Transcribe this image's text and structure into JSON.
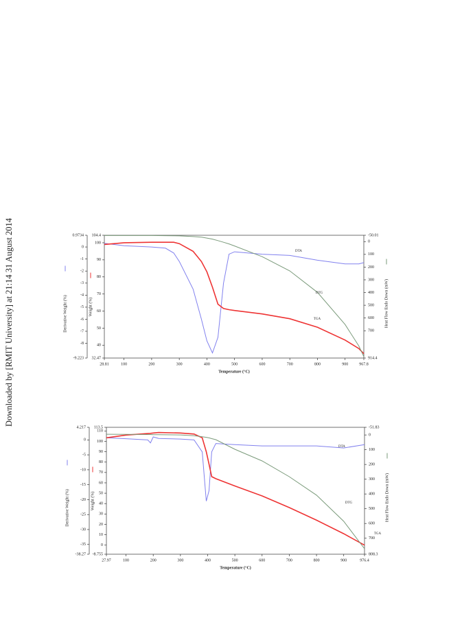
{
  "watermark": "Downloaded by [RMIT University] at 21:14 31 August 2014",
  "chart_data": [
    {
      "type": "line",
      "x_label": "Temperature (°C)",
      "y_label": "Derivative Weight (%)",
      "y2_label": "Weight (%)",
      "y3_label": "Heat Flow Endo Down (mW)",
      "xlim": [
        28.81,
        967.8
      ],
      "xticks": [
        28.81,
        100,
        200,
        300,
        400,
        500,
        600,
        700,
        800,
        900,
        967.8
      ],
      "ylim": [
        -9.223,
        0.9734
      ],
      "yticks": [
        0.9734,
        0,
        -1,
        -2,
        -3,
        -4,
        -5,
        -6,
        -7,
        -8,
        -9.223
      ],
      "y2lim": [
        32.47,
        104.4
      ],
      "y2ticks": [
        104.4,
        100,
        90,
        80,
        70,
        60,
        50,
        40,
        32.47
      ],
      "y3lim": [
        914.4,
        -50.01
      ],
      "y3ticks": [
        -50.01,
        0,
        100,
        200,
        300,
        400,
        500,
        600,
        700,
        914.4
      ],
      "x": [
        28.81,
        100,
        200,
        250,
        280,
        300,
        350,
        380,
        400,
        420,
        440,
        460,
        480,
        500,
        600,
        700,
        800,
        900,
        950,
        967.8
      ],
      "series": [
        {
          "name": "DTA",
          "color": "#8080ee",
          "axis": "y",
          "values": [
            0.3,
            0.1,
            0,
            -0.1,
            -0.5,
            -1.2,
            -3.5,
            -6,
            -7.8,
            -8.8,
            -7.5,
            -3,
            -0.6,
            -0.4,
            -0.6,
            -0.7,
            -1.1,
            -1.4,
            -1.4,
            -1.3
          ]
        },
        {
          "name": "TGA",
          "color": "#ee3333",
          "axis": "y2",
          "values": [
            99,
            100,
            100.3,
            100.3,
            100.3,
            99.5,
            95,
            89,
            83,
            74,
            64,
            61.5,
            60.8,
            60.3,
            58.3,
            55.5,
            50.5,
            43,
            38,
            35
          ]
        },
        {
          "name": "DTG",
          "color": "#7a9a7a",
          "axis": "y3",
          "values": [
            -48,
            -48,
            -48,
            -47,
            -46,
            -45,
            -40,
            -35,
            -28,
            -20,
            -8,
            5,
            18,
            34,
            118,
            230,
            399,
            651,
            820,
            903
          ]
        }
      ]
    },
    {
      "type": "line",
      "x_label": "Temperature (°C)",
      "y_label": "Derivative Weight (%)",
      "y2_label": "Weight (%)",
      "y3_label": "Heat Flow Endo Down (mW)",
      "xlim": [
        27.97,
        976.4
      ],
      "xticks": [
        27.97,
        100,
        200,
        300,
        400,
        500,
        600,
        700,
        800,
        900,
        976.4
      ],
      "ylim": [
        -38.27,
        4.217
      ],
      "yticks": [
        4.217,
        0,
        -5,
        -10,
        -15,
        -20,
        -25,
        -30,
        -35,
        -38.27
      ],
      "y2lim": [
        -8.755,
        113.5
      ],
      "y2ticks": [
        113.5,
        110,
        100,
        90,
        80,
        70,
        60,
        50,
        40,
        30,
        20,
        10,
        0,
        -8.755
      ],
      "y3lim": [
        808.3,
        -51.83
      ],
      "y3ticks": [
        -51.83,
        0,
        100,
        200,
        300,
        400,
        500,
        600,
        700,
        808.3
      ],
      "x": [
        27.97,
        100,
        180,
        190,
        200,
        220,
        300,
        350,
        380,
        395,
        405,
        415,
        430,
        500,
        600,
        700,
        800,
        900,
        976.4
      ],
      "series": [
        {
          "name": "DTA",
          "color": "#8080ee",
          "axis": "y",
          "values": [
            0.7,
            0.4,
            0,
            -1,
            1,
            0.5,
            0.3,
            0,
            -4,
            -20.5,
            -17,
            -4,
            -1.2,
            -1.6,
            -2,
            -2,
            -2,
            -2.7,
            -1.6
          ]
        },
        {
          "name": "TGA",
          "color": "#ee3333",
          "axis": "y2",
          "values": [
            103.4,
            106,
            107.5,
            107.7,
            108,
            108.5,
            108,
            107,
            103.4,
            90,
            78,
            66,
            64,
            57,
            47.4,
            36.2,
            24,
            11,
            0
          ]
        },
        {
          "name": "DTG",
          "color": "#7a9a7a",
          "axis": "y3",
          "values": [
            -5,
            -4,
            -3,
            -3,
            -2,
            -2,
            0,
            5,
            12,
            16,
            20,
            25,
            32,
            97,
            176,
            283,
            408,
            585,
            771
          ]
        }
      ]
    }
  ]
}
